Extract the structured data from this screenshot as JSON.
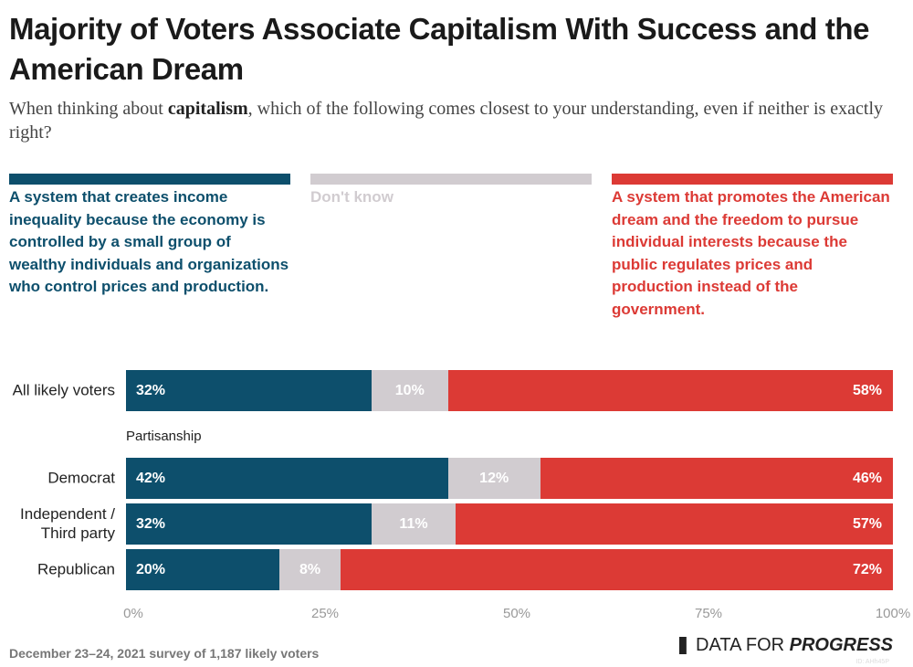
{
  "title": "Majority of Voters Associate Capitalism With Success and the American Dream",
  "subtitle": {
    "pre": "When thinking about ",
    "bold": "capitalism",
    "post": ", which of the following comes closest to your understanding, even if neither is exactly right?"
  },
  "colors": {
    "inequality": "#0d4f6c",
    "dont_know": "#d1ccd0",
    "dream": "#dc3a35"
  },
  "chart_data": {
    "type": "bar",
    "orientation": "horizontal",
    "stacked": true,
    "xlim": [
      0,
      100
    ],
    "legend": [
      "A system that creates income inequality because the economy is controlled by a small group of wealthy individuals and organizations who control prices and production.",
      "Don't know",
      "A system that promotes the American dream and the freedom to pursue individual interests because the public regulates prices and production instead of the government."
    ],
    "group_label": "Partisanship",
    "categories": [
      "All likely voters",
      "Democrat",
      "Independent / Third party",
      "Republican"
    ],
    "series": [
      {
        "name": "A system that creates income inequality because the economy is controlled by a small group of wealthy individuals and organizations who control prices and production.",
        "values": [
          32,
          42,
          32,
          20
        ]
      },
      {
        "name": "Don't know",
        "values": [
          10,
          12,
          11,
          8
        ]
      },
      {
        "name": "A system that promotes the American dream and the freedom to pursue individual interests because the public regulates prices and production instead of the government.",
        "values": [
          58,
          46,
          57,
          72
        ]
      }
    ],
    "labels": [
      [
        "32%",
        "10%",
        "58%"
      ],
      [
        "42%",
        "12%",
        "46%"
      ],
      [
        "32%",
        "11%",
        "57%"
      ],
      [
        "20%",
        "8%",
        "72%"
      ]
    ],
    "ticks": [
      "0%",
      "25%",
      "50%",
      "75%",
      "100%"
    ]
  },
  "footer": "December 23–24, 2021 survey of 1,187 likely voters",
  "logo": {
    "a": "DATA FOR ",
    "b": "PROGRESS"
  },
  "id": "ID: AHh45P"
}
